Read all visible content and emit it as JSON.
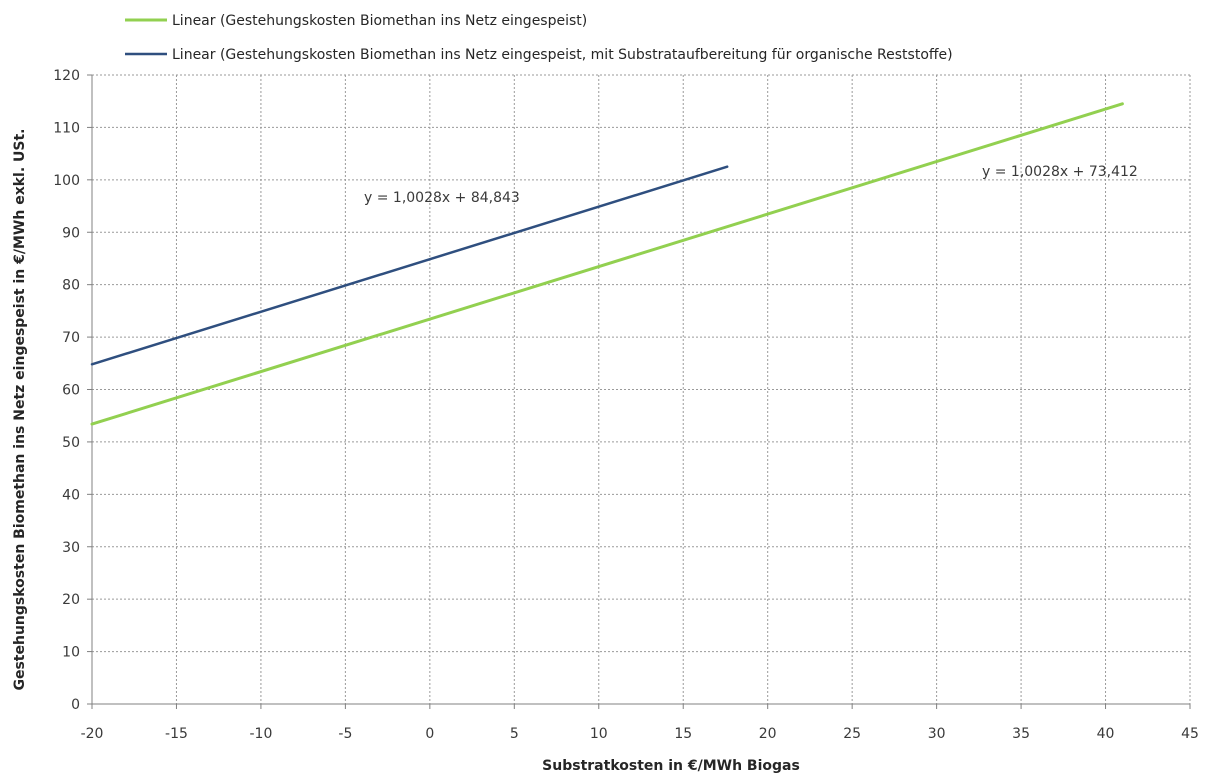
{
  "chart_data": {
    "type": "line",
    "xlabel": "Substratkosten in €/MWh Biogas",
    "ylabel": "Gestehungskosten Biomethan ins Netz eingespeist in €/MWh exkl. USt.",
    "xlim": [
      -20,
      45
    ],
    "ylim": [
      0,
      120
    ],
    "x_ticks": [
      -20,
      -15,
      -10,
      -5,
      0,
      5,
      10,
      15,
      20,
      25,
      30,
      35,
      40,
      45
    ],
    "y_ticks": [
      0,
      10,
      20,
      30,
      40,
      50,
      60,
      70,
      80,
      90,
      100,
      110,
      120
    ],
    "grid": true,
    "legend_position": "top",
    "series": [
      {
        "name": "Linear (Gestehungskosten Biomethan ins Netz eingespeist)",
        "color": "#92d050",
        "x": [
          -20,
          41
        ],
        "y": [
          53.4,
          114.5
        ],
        "equation": "y = 1,0028x + 73,412"
      },
      {
        "name": "Linear (Gestehungskosten Biomethan ins Netz eingespeist, mit Substrataufbereitung für organische Reststoffe)",
        "color": "#2f4f7f",
        "x": [
          -20,
          17.6
        ],
        "y": [
          64.8,
          102.5
        ],
        "equation": "y = 1,0028x + 84,843"
      }
    ]
  }
}
